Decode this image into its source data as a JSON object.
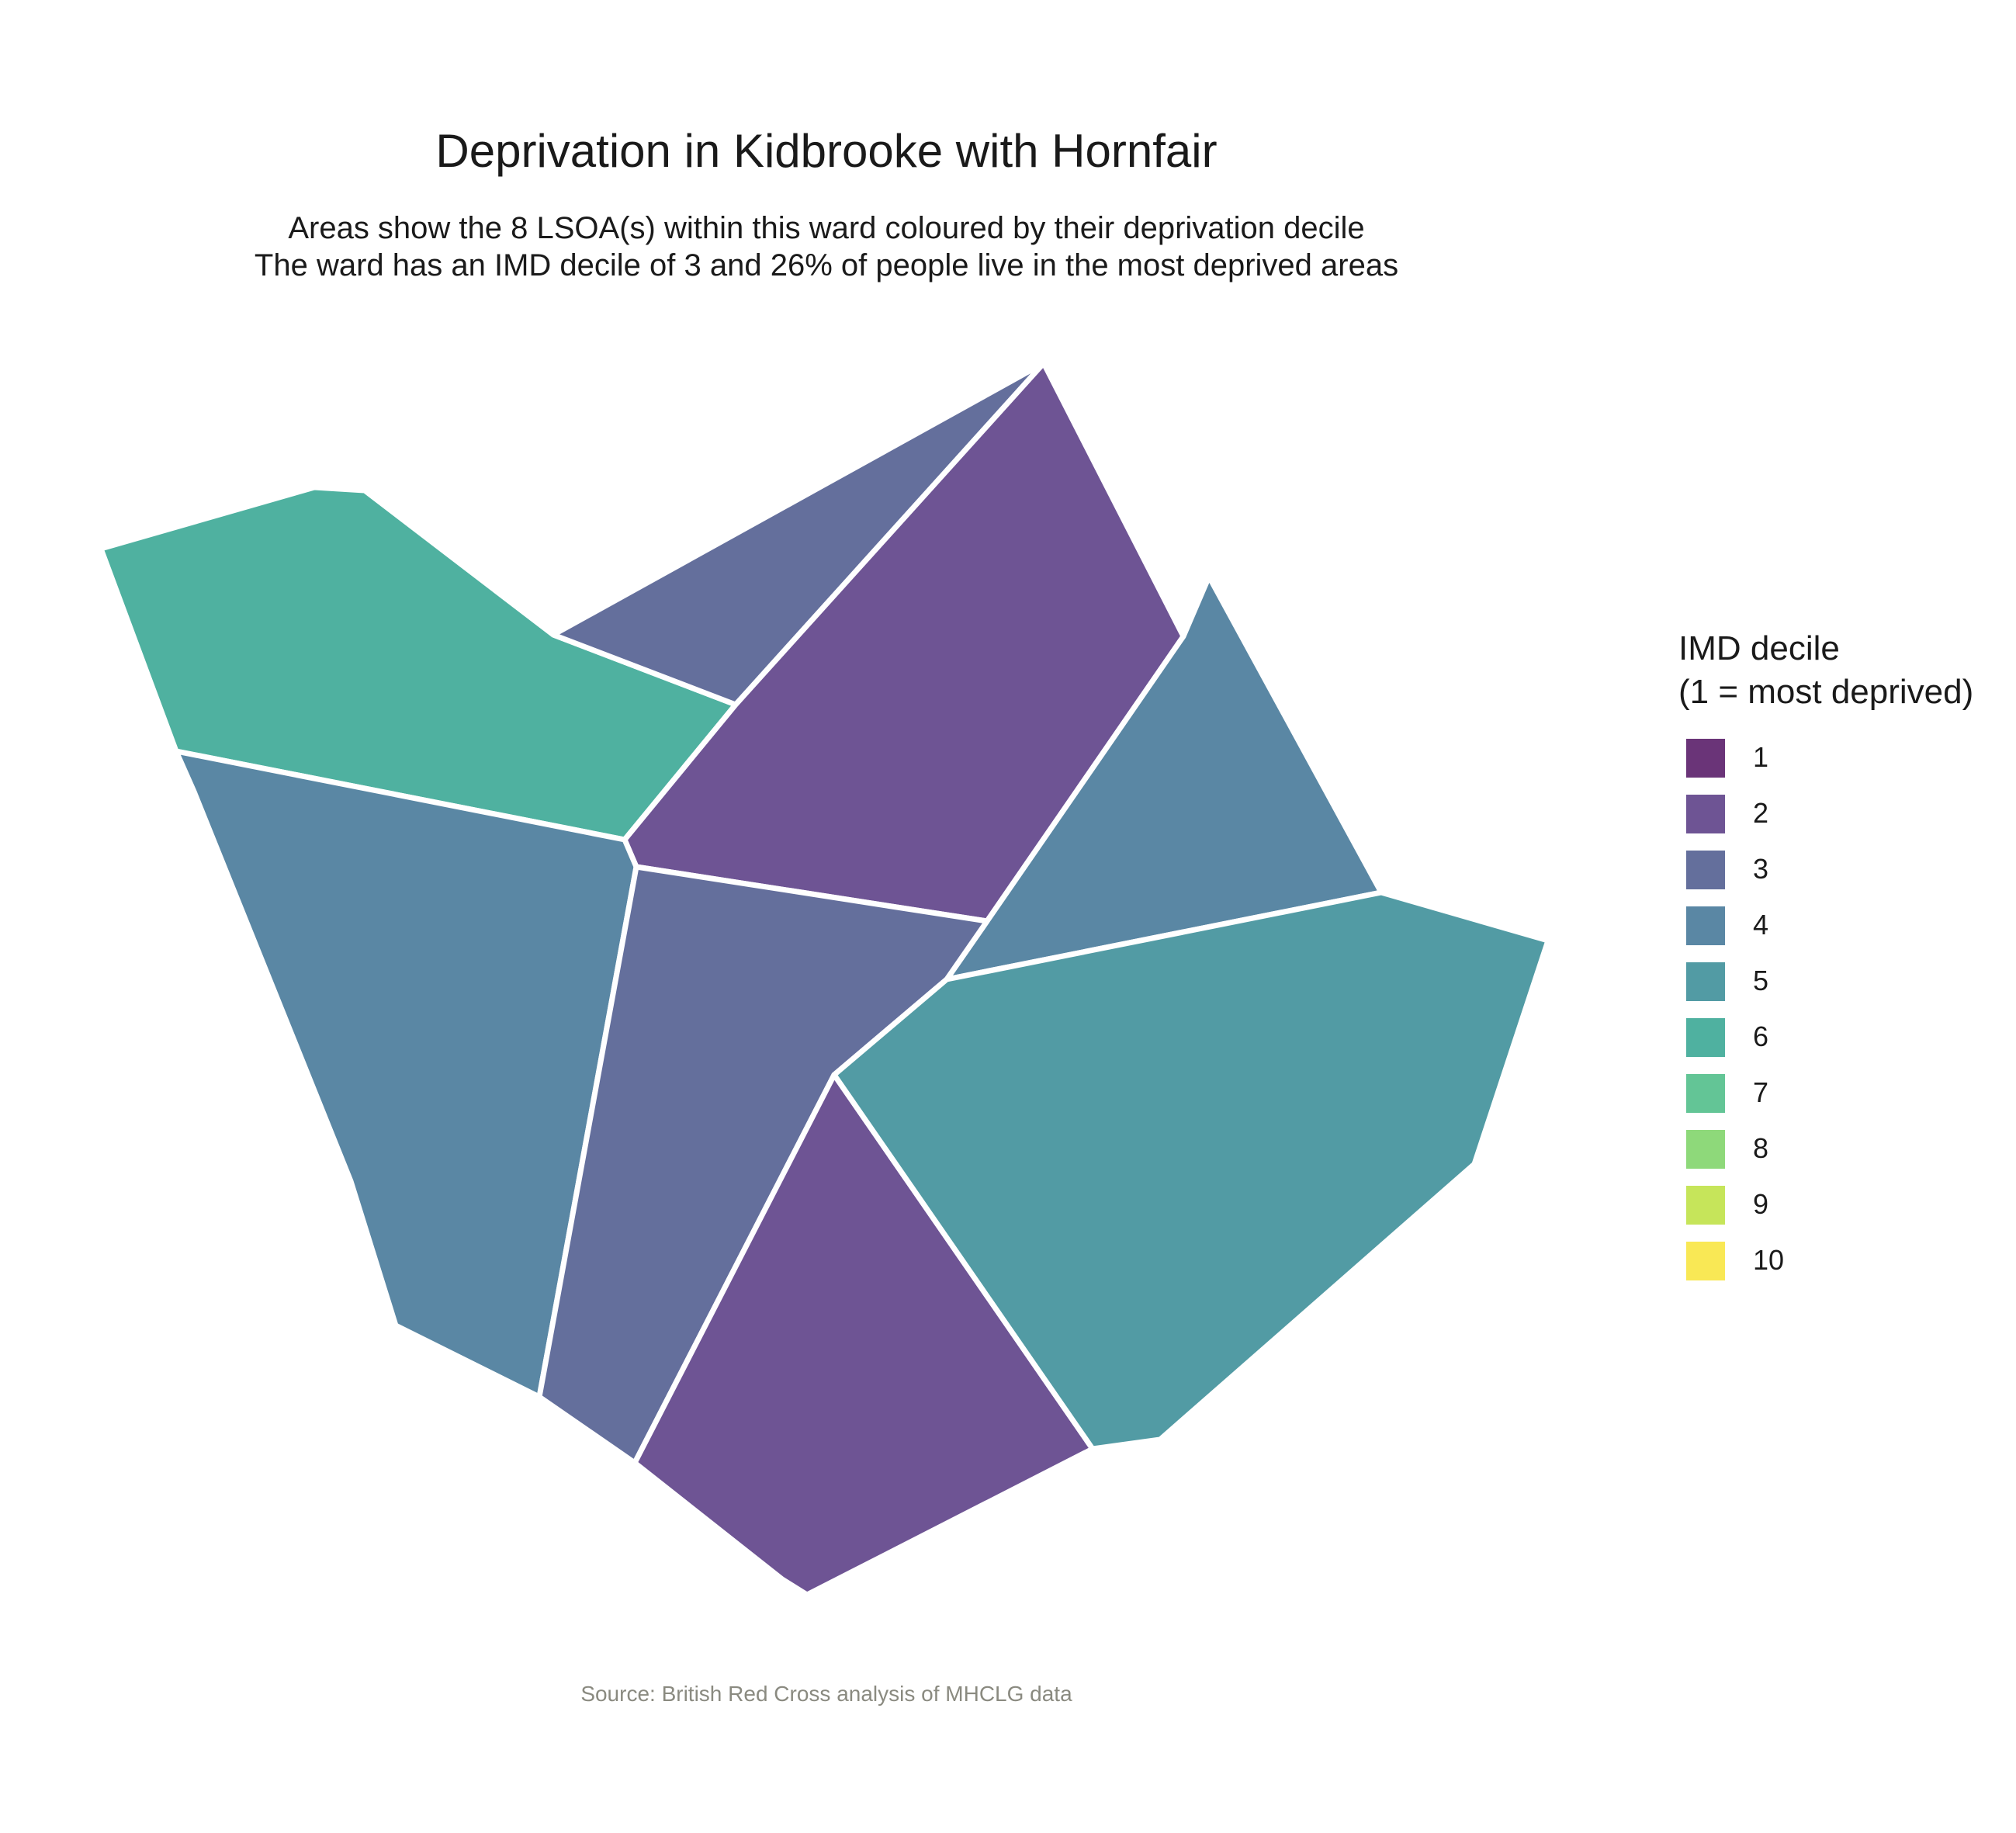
{
  "title": "Deprivation in Kidbrooke with Hornfair",
  "subtitle": {
    "line1": "Areas show the 8 LSOA(s) within this ward coloured by their deprivation decile",
    "line2": "The ward has an IMD decile of 3 and 26% of people live in the most deprived areas"
  },
  "legend": {
    "title_line1": "IMD decile",
    "title_line2": "(1 = most deprived)",
    "items": [
      {
        "label": "1",
        "color": "#6a3478"
      },
      {
        "label": "2",
        "color": "#6e5494"
      },
      {
        "label": "3",
        "color": "#646f9c"
      },
      {
        "label": "4",
        "color": "#5a87a4"
      },
      {
        "label": "5",
        "color": "#529ba4"
      },
      {
        "label": "6",
        "color": "#4fb1a0"
      },
      {
        "label": "7",
        "color": "#63c596"
      },
      {
        "label": "8",
        "color": "#8ed97a"
      },
      {
        "label": "9",
        "color": "#c6e55a"
      },
      {
        "label": "10",
        "color": "#f9e855"
      }
    ]
  },
  "caption": "Source: British Red Cross analysis of MHCLG data",
  "chart_data": {
    "type": "choropleth",
    "areas": [
      {
        "name": "northwest",
        "decile": 6
      },
      {
        "name": "north",
        "decile": 3
      },
      {
        "name": "north-central",
        "decile": 2
      },
      {
        "name": "northeast",
        "decile": 4
      },
      {
        "name": "west",
        "decile": 4
      },
      {
        "name": "central",
        "decile": 3
      },
      {
        "name": "south",
        "decile": 2
      },
      {
        "name": "southeast",
        "decile": 5
      }
    ]
  }
}
